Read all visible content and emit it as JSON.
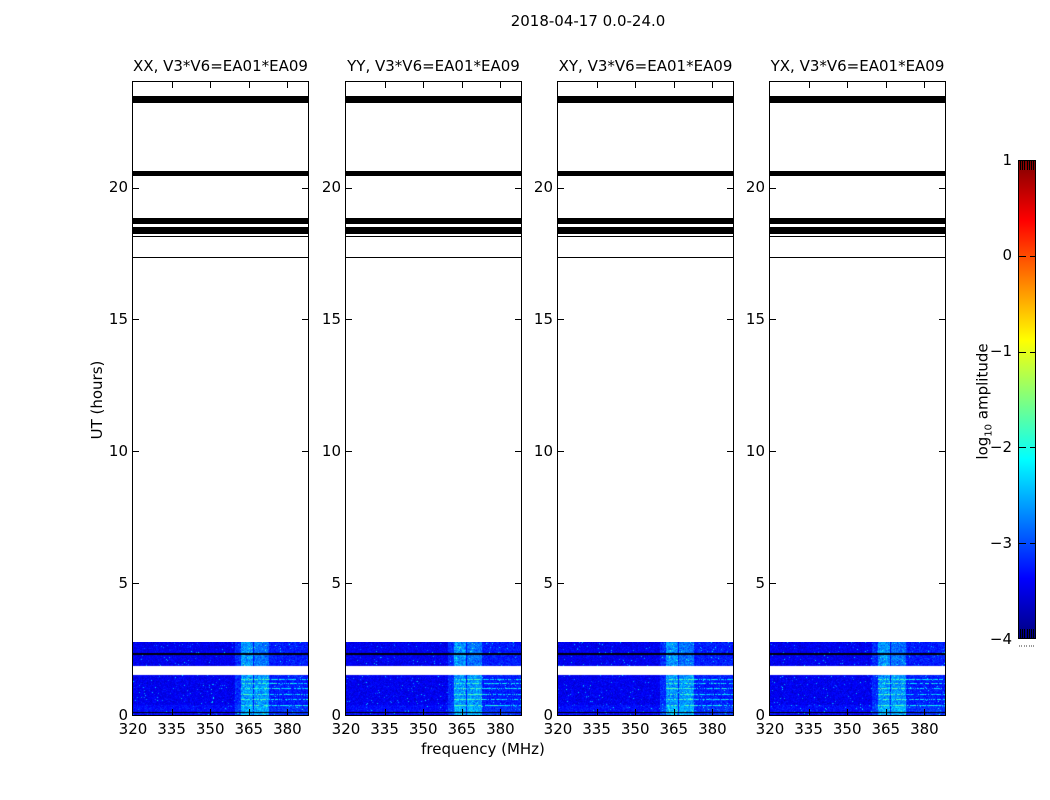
{
  "figure": {
    "title": "2018-04-17 0.0-24.0",
    "xlabel": "frequency (MHz)",
    "ylabel": "UT (hours)",
    "background": "#ffffff",
    "colorbar_label_prefix": "log",
    "colorbar_label_sub": "10",
    "colorbar_label_suffix": " amplitude"
  },
  "chart_data": {
    "type": "heatmap",
    "title": "2018-04-17 0.0-24.0",
    "xlabel": "frequency (MHz)",
    "ylabel": "UT (hours)",
    "panels": [
      {
        "pol": "XX",
        "label": "XX, V3*V6=EA01*EA09"
      },
      {
        "pol": "YY",
        "label": "YY, V3*V6=EA01*EA09"
      },
      {
        "pol": "XY",
        "label": "XY, V3*V6=EA01*EA09"
      },
      {
        "pol": "YX",
        "label": "YX, V3*V6=EA01*EA09"
      }
    ],
    "x_range_mhz": [
      320,
      388
    ],
    "x_ticks": [
      320,
      335,
      350,
      365,
      380
    ],
    "y_range_hours": [
      0,
      24
    ],
    "y_ticks": [
      0,
      5,
      10,
      15,
      20
    ],
    "grid": false,
    "colormap": "jet",
    "colormap_stops": [
      "#000080",
      "#0000ff",
      "#00ffff",
      "#ffff00",
      "#ff0000",
      "#800000"
    ],
    "colormap_stop_positions": [
      0,
      0.125,
      0.375,
      0.625,
      0.875,
      1
    ],
    "color_range": [
      -4,
      1
    ],
    "colorbar_ticks": [
      1,
      0,
      -1,
      -2,
      -3,
      -4
    ],
    "colorbar_tick_labels": [
      "1",
      "0",
      "−1",
      "−2",
      "−3",
      "−4"
    ],
    "colorbar_label": "log10 amplitude",
    "colorbar_position": "right",
    "flagged_black_bands_hours": [
      {
        "start": 23.2,
        "end": 23.47
      },
      {
        "start": 20.42,
        "end": 20.61
      },
      {
        "start": 18.63,
        "end": 18.83
      },
      {
        "start": 18.24,
        "end": 18.5
      },
      {
        "start": 18.12,
        "end": 18.18
      },
      {
        "start": 17.34,
        "end": 17.38
      }
    ],
    "emission_blocks_hours": [
      {
        "start": 1.87,
        "end": 2.76,
        "dark_line_at": 2.31
      },
      {
        "start": 0.0,
        "end": 1.53,
        "dark_line_at": 0.11
      }
    ],
    "typical_background_log10": -3.45,
    "bright_feature_log10": -2.2,
    "bright_features_mhz": [
      {
        "from": 359.5,
        "to": 362.0,
        "strength": 0.2
      },
      {
        "from": 362.0,
        "to": 366.5,
        "strength": 0.65
      },
      {
        "from": 367.2,
        "to": 373.0,
        "strength": 0.6
      },
      {
        "from": 373.0,
        "to": 386.0,
        "strength": 0.15,
        "note": "horizontal cyan streaks in lower block"
      }
    ]
  }
}
